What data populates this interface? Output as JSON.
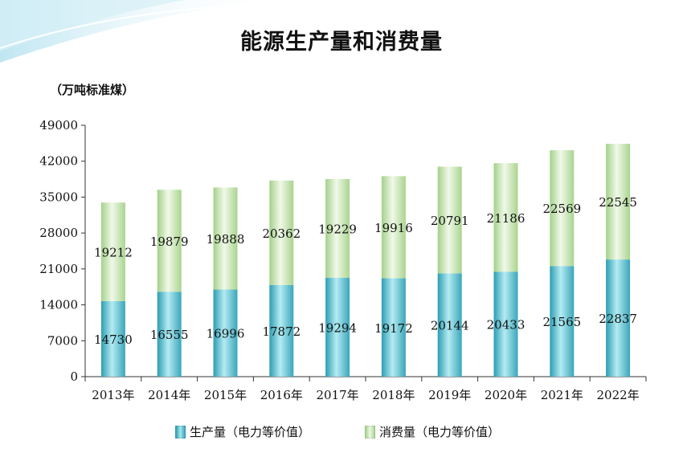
{
  "title": "能源生产量和消费量",
  "unit_label": "（万吨标准煤）",
  "colors": {
    "production": "#5bbccc",
    "consumption": "#cde8b8"
  },
  "legend": {
    "production": "生产量（电力等价值）",
    "consumption": "消费量（电力等价值）"
  },
  "chart_data": {
    "type": "bar",
    "stacked": true,
    "categories": [
      "2013年",
      "2014年",
      "2015年",
      "2016年",
      "2017年",
      "2018年",
      "2019年",
      "2020年",
      "2021年",
      "2022年"
    ],
    "series": [
      {
        "name": "生产量（电力等价值）",
        "values": [
          14730,
          16555,
          16996,
          17872,
          19294,
          19172,
          20144,
          20433,
          21565,
          22837
        ]
      },
      {
        "name": "消费量（电力等价值）",
        "values": [
          19212,
          19879,
          19888,
          20362,
          19229,
          19916,
          20791,
          21186,
          22569,
          22545
        ]
      }
    ],
    "yticks": [
      0,
      7000,
      14000,
      21000,
      28000,
      35000,
      42000,
      49000
    ],
    "ylim": [
      0,
      49000
    ],
    "title": "能源生产量和消费量",
    "ylabel": "（万吨标准煤）",
    "xlabel": "",
    "grid": false,
    "legend_position": "bottom"
  }
}
